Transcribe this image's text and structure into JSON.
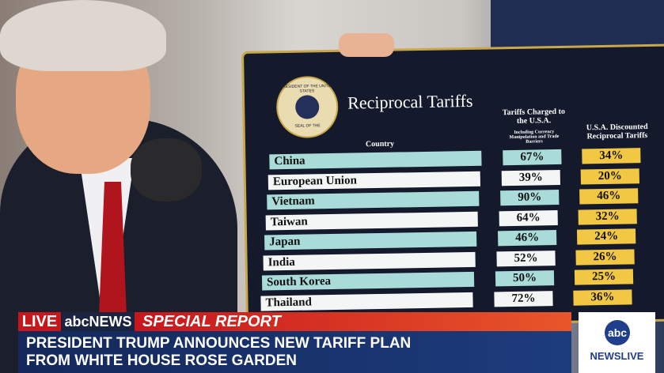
{
  "board": {
    "seal_top": "PRESIDENT OF THE UNITED STATES",
    "seal_bottom": "SEAL OF THE",
    "title": "Reciprocal Tariffs",
    "headers": {
      "country": "Country",
      "charged": "Tariffs Charged to the U.S.A.",
      "charged_note": "Including Currency Manipulation and Trade Barriers",
      "discounted": "U.S.A. Discounted Reciprocal Tariffs"
    },
    "rows": [
      [
        "China",
        "67%",
        "34%"
      ],
      [
        "European Union",
        "39%",
        "20%"
      ],
      [
        "Vietnam",
        "90%",
        "46%"
      ],
      [
        "Taiwan",
        "64%",
        "32%"
      ],
      [
        "Japan",
        "46%",
        "24%"
      ],
      [
        "India",
        "52%",
        "26%"
      ],
      [
        "South Korea",
        "50%",
        "25%"
      ],
      [
        "Thailand",
        "72%",
        "36%"
      ]
    ]
  },
  "banner": {
    "live": "LIVE",
    "network": "abcNEWS",
    "label": "SPECIAL REPORT",
    "headline": [
      "PRESIDENT TRUMP ANNOUNCES NEW TARIFF PLAN",
      "FROM WHITE HOUSE ROSE GARDEN"
    ],
    "logo": "abc",
    "logo_sub": "NEWSLIVE"
  }
}
